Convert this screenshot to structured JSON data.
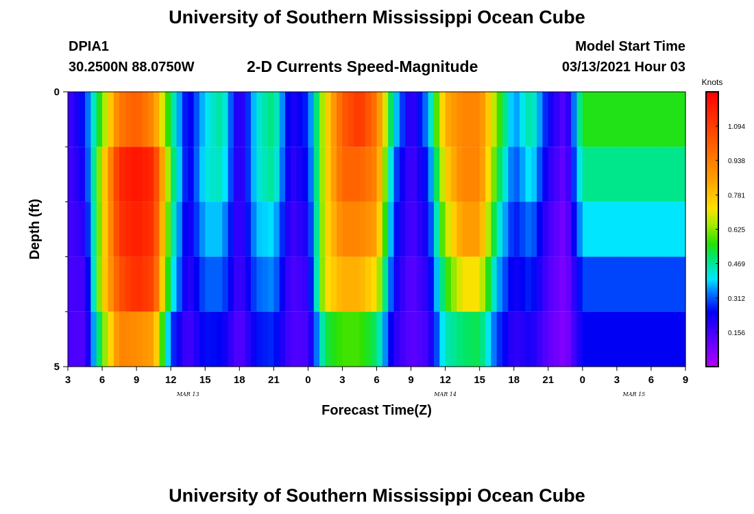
{
  "header": {
    "title_top": "University of Southern Mississippi Ocean Cube",
    "title_bottom": "University of Southern Mississippi Ocean Cube",
    "station_id": "DPIA1",
    "station_coords": "30.2500N 88.0750W",
    "plot_title": "2-D Currents Speed-Magnitude",
    "model_start_label": "Model Start Time",
    "model_start_value": "03/13/2021 Hour 03"
  },
  "chart_data": {
    "type": "heatmap",
    "title": "2-D Currents Speed-Magnitude",
    "xlabel": "Forecast Time(Z)",
    "ylabel": "Depth (ft)",
    "x_tick_labels": [
      "3",
      "6",
      "9",
      "12",
      "15",
      "18",
      "21",
      "0",
      "3",
      "6",
      "9",
      "12",
      "15",
      "18",
      "21",
      "0",
      "3",
      "6",
      "9"
    ],
    "x_range_hours": [
      0,
      54
    ],
    "date_labels": [
      {
        "text": "MAR 13",
        "at_hour": 10.5
      },
      {
        "text": "MAR 14",
        "at_hour": 33
      },
      {
        "text": "MAR 15",
        "at_hour": 49.5
      }
    ],
    "y_tick_labels": [
      {
        "text": "0",
        "depth": 0
      },
      {
        "text": "5",
        "depth": 5
      }
    ],
    "y_minor_ticks": [
      1,
      2,
      3,
      4
    ],
    "y_range_ft": [
      0,
      5
    ],
    "depth_levels": [
      0,
      1,
      2,
      3,
      4,
      5
    ],
    "colorbar": {
      "label": "Knots",
      "min": 0.0,
      "max": 1.25,
      "tick_values": [
        "0.156",
        "0.312",
        "0.469",
        "0.625",
        "0.781",
        "0.938",
        "1.094"
      ]
    },
    "speed_profiles_knots": [
      [
        0.15,
        0.15,
        0.15,
        0.15,
        0.15
      ],
      [
        0.28,
        0.24,
        0.2,
        0.16,
        0.14
      ],
      [
        0.6,
        0.7,
        0.7,
        0.72,
        0.58
      ],
      [
        0.95,
        1.15,
        1.12,
        1.05,
        0.92
      ],
      [
        1.02,
        1.2,
        1.18,
        1.14,
        0.9
      ],
      [
        0.9,
        1.15,
        1.12,
        1.08,
        0.85
      ],
      [
        0.5,
        0.55,
        0.5,
        0.45,
        0.3
      ],
      [
        0.22,
        0.22,
        0.2,
        0.18,
        0.15
      ],
      [
        0.4,
        0.42,
        0.38,
        0.32,
        0.26
      ],
      [
        0.48,
        0.45,
        0.38,
        0.32,
        0.25
      ],
      [
        0.15,
        0.15,
        0.15,
        0.15,
        0.12
      ],
      [
        0.42,
        0.42,
        0.38,
        0.32,
        0.26
      ],
      [
        0.5,
        0.48,
        0.4,
        0.35,
        0.28
      ],
      [
        0.2,
        0.18,
        0.16,
        0.14,
        0.14
      ],
      [
        0.28,
        0.26,
        0.22,
        0.18,
        0.15
      ],
      [
        0.72,
        0.72,
        0.72,
        0.72,
        0.52
      ],
      [
        1.02,
        1.0,
        0.92,
        0.82,
        0.58
      ],
      [
        1.12,
        1.0,
        0.92,
        0.82,
        0.58
      ],
      [
        0.95,
        0.92,
        0.85,
        0.72,
        0.5
      ],
      [
        0.42,
        0.32,
        0.28,
        0.24,
        0.2
      ],
      [
        0.16,
        0.15,
        0.14,
        0.12,
        0.12
      ],
      [
        0.36,
        0.28,
        0.24,
        0.2,
        0.16
      ],
      [
        0.82,
        0.75,
        0.66,
        0.55,
        0.45
      ],
      [
        0.92,
        0.92,
        0.86,
        0.72,
        0.5
      ],
      [
        0.92,
        0.92,
        0.86,
        0.72,
        0.52
      ],
      [
        0.62,
        0.55,
        0.46,
        0.38,
        0.3
      ],
      [
        0.34,
        0.3,
        0.26,
        0.22,
        0.18
      ],
      [
        0.48,
        0.42,
        0.34,
        0.28,
        0.22
      ],
      [
        0.24,
        0.2,
        0.16,
        0.14,
        0.12
      ],
      [
        0.12,
        0.1,
        0.08,
        0.07,
        0.06
      ],
      [
        0.55,
        0.48,
        0.4,
        0.3,
        0.25
      ]
    ],
    "profile_times_hours": [
      0,
      1.5,
      3,
      4.5,
      6,
      7.5,
      9,
      10.5,
      12,
      13.5,
      15,
      16.5,
      18,
      19.5,
      21,
      22.5,
      24,
      25.5,
      27,
      28.5,
      30,
      31.5,
      33,
      34.5,
      36,
      37.5,
      39,
      40.5,
      42,
      43.5,
      45
    ]
  }
}
